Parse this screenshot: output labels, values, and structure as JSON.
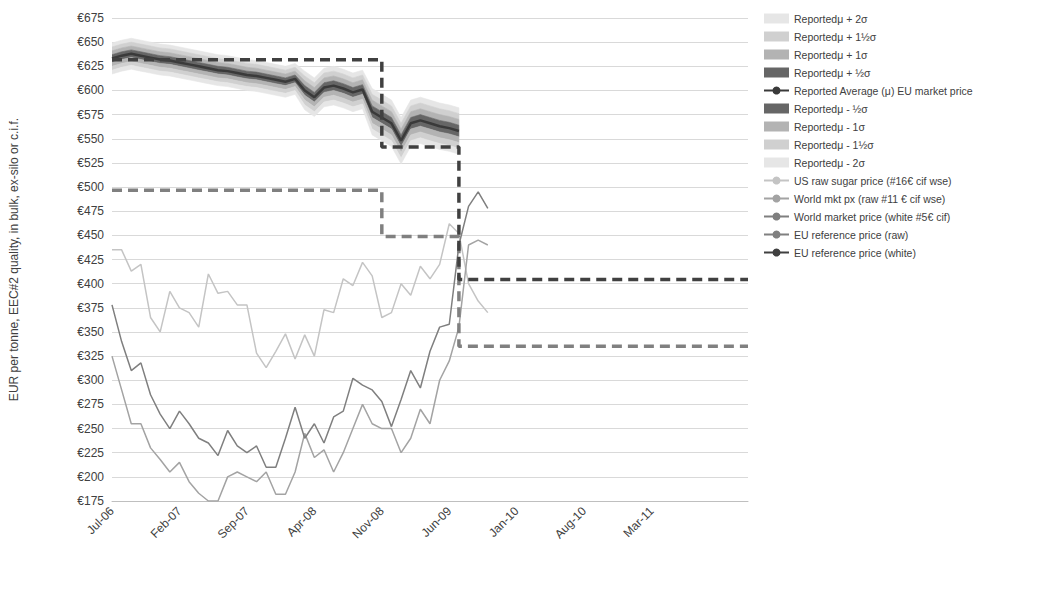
{
  "chart_data": {
    "type": "line",
    "ylabel": "EUR per tonne, EEC#2 quality, in bulk, ex-silo or c.i.f.",
    "categories": [
      "Jul-06",
      null,
      null,
      null,
      null,
      null,
      null,
      "Feb-07",
      null,
      null,
      null,
      null,
      null,
      null,
      "Sep-07",
      null,
      null,
      null,
      null,
      null,
      null,
      "Apr-08",
      null,
      null,
      null,
      null,
      null,
      null,
      "Nov-08",
      null,
      null,
      null,
      null,
      null,
      null,
      "Jun-09",
      null,
      null,
      null,
      null,
      null,
      null,
      "Jan-10",
      null,
      null,
      null,
      null,
      null,
      null,
      "Aug-10",
      null,
      null,
      null,
      null,
      null,
      null,
      "Mar-11",
      null,
      null,
      null,
      null,
      null,
      null,
      null,
      null,
      null,
      null
    ],
    "ylim": [
      175,
      675
    ],
    "yticks": [
      {
        "value": 175,
        "label": "€175"
      },
      {
        "value": 200,
        "label": "€200"
      },
      {
        "value": 225,
        "label": "€225"
      },
      {
        "value": 250,
        "label": "€250"
      },
      {
        "value": 275,
        "label": "€275"
      },
      {
        "value": 300,
        "label": "€300"
      },
      {
        "value": 325,
        "label": "€325"
      },
      {
        "value": 350,
        "label": "€350"
      },
      {
        "value": 375,
        "label": "€375"
      },
      {
        "value": 400,
        "label": "€400"
      },
      {
        "value": 425,
        "label": "€425"
      },
      {
        "value": 450,
        "label": "€450"
      },
      {
        "value": 475,
        "label": "€475"
      },
      {
        "value": 500,
        "label": "€500"
      },
      {
        "value": 525,
        "label": "€525"
      },
      {
        "value": 550,
        "label": "€550"
      },
      {
        "value": 575,
        "label": "€575"
      },
      {
        "value": 600,
        "label": "€600"
      },
      {
        "value": 625,
        "label": "€625"
      },
      {
        "value": 650,
        "label": "€650"
      },
      {
        "value": 675,
        "label": "€675"
      }
    ],
    "grid": true,
    "legend": "right",
    "series": [
      {
        "name": "Reportedμ + 2σ",
        "type": "area",
        "color": "#e6e6e6",
        "values": [
          649,
          652,
          654,
          652,
          650,
          648,
          647,
          645,
          643,
          641,
          639,
          637,
          636,
          634,
          632,
          631,
          629,
          627,
          625,
          628,
          620,
          613,
          623,
          625,
          622,
          618,
          621,
          602,
          596,
          590,
          572,
          590,
          593,
          590,
          587,
          585,
          582,
          null,
          null,
          null,
          null,
          null,
          null,
          null,
          null,
          null,
          null,
          null,
          null,
          null,
          null,
          null,
          null,
          null,
          null,
          null,
          null,
          null,
          null,
          null,
          null,
          null,
          null,
          null,
          null,
          null,
          null
        ]
      },
      {
        "name": "Reportedμ + 1½σ",
        "type": "area",
        "color": "#d0d0d0",
        "values": [
          645,
          648,
          650,
          648,
          646,
          644,
          643,
          641,
          639,
          637,
          635,
          633,
          632,
          630,
          628,
          627,
          625,
          623,
          621,
          624,
          615,
          608,
          618,
          620,
          617,
          613,
          616,
          596,
          590,
          584,
          566,
          584,
          587,
          584,
          581,
          579,
          576,
          null,
          null,
          null,
          null,
          null,
          null,
          null,
          null,
          null,
          null,
          null,
          null,
          null,
          null,
          null,
          null,
          null,
          null,
          null,
          null,
          null,
          null,
          null,
          null,
          null,
          null,
          null,
          null,
          null,
          null
        ]
      },
      {
        "name": "Reportedμ + 1σ",
        "type": "area",
        "color": "#b3b3b3",
        "values": [
          641,
          644,
          646,
          644,
          642,
          640,
          639,
          637,
          635,
          633,
          631,
          629,
          628,
          626,
          624,
          623,
          621,
          619,
          617,
          620,
          610,
          603,
          613,
          615,
          612,
          608,
          611,
          590,
          584,
          578,
          560,
          578,
          581,
          578,
          575,
          573,
          570,
          null,
          null,
          null,
          null,
          null,
          null,
          null,
          null,
          null,
          null,
          null,
          null,
          null,
          null,
          null,
          null,
          null,
          null,
          null,
          null,
          null,
          null,
          null,
          null,
          null,
          null,
          null,
          null,
          null,
          null
        ]
      },
      {
        "name": "Reportedμ + ½σ",
        "type": "area",
        "color": "#666666",
        "values": [
          637,
          640,
          642,
          640,
          638,
          636,
          635,
          633,
          631,
          629,
          627,
          625,
          624,
          622,
          620,
          619,
          617,
          615,
          613,
          616,
          605,
          598,
          608,
          610,
          607,
          603,
          606,
          584,
          578,
          572,
          554,
          572,
          575,
          572,
          569,
          567,
          564,
          null,
          null,
          null,
          null,
          null,
          null,
          null,
          null,
          null,
          null,
          null,
          null,
          null,
          null,
          null,
          null,
          null,
          null,
          null,
          null,
          null,
          null,
          null,
          null,
          null,
          null,
          null,
          null,
          null,
          null
        ]
      },
      {
        "name": "Reported Average (μ) EU market price",
        "color": "#3a3a3a",
        "values": [
          633,
          636,
          638,
          636,
          634,
          632,
          631,
          629,
          627,
          625,
          623,
          621,
          620,
          618,
          616,
          615,
          613,
          611,
          609,
          612,
          600,
          593,
          603,
          605,
          602,
          598,
          601,
          578,
          572,
          566,
          548,
          566,
          569,
          566,
          563,
          561,
          558,
          null,
          null,
          null,
          null,
          null,
          null,
          null,
          null,
          null,
          null,
          null,
          null,
          null,
          null,
          null,
          null,
          null,
          null,
          null,
          null,
          null,
          null,
          null,
          null,
          null,
          null,
          null,
          null,
          null,
          null
        ]
      },
      {
        "name": "Reportedμ - ½σ",
        "type": "area",
        "color": "#666666",
        "values": [
          629,
          632,
          634,
          632,
          630,
          628,
          627,
          625,
          623,
          621,
          619,
          617,
          616,
          614,
          612,
          611,
          609,
          607,
          605,
          608,
          595,
          588,
          598,
          600,
          597,
          593,
          596,
          572,
          566,
          560,
          542,
          560,
          563,
          560,
          557,
          555,
          552,
          null,
          null,
          null,
          null,
          null,
          null,
          null,
          null,
          null,
          null,
          null,
          null,
          null,
          null,
          null,
          null,
          null,
          null,
          null,
          null,
          null,
          null,
          null,
          null,
          null,
          null,
          null,
          null,
          null,
          null
        ]
      },
      {
        "name": "Reportedμ - 1σ",
        "type": "area",
        "color": "#b3b3b3",
        "values": [
          625,
          628,
          630,
          628,
          626,
          624,
          623,
          621,
          619,
          617,
          615,
          613,
          612,
          610,
          608,
          607,
          605,
          603,
          601,
          604,
          590,
          583,
          593,
          595,
          592,
          588,
          591,
          566,
          560,
          554,
          536,
          554,
          557,
          554,
          551,
          549,
          546,
          null,
          null,
          null,
          null,
          null,
          null,
          null,
          null,
          null,
          null,
          null,
          null,
          null,
          null,
          null,
          null,
          null,
          null,
          null,
          null,
          null,
          null,
          null,
          null,
          null,
          null,
          null,
          null,
          null,
          null
        ]
      },
      {
        "name": "Reportedμ - 1½σ",
        "type": "area",
        "color": "#d0d0d0",
        "values": [
          621,
          624,
          626,
          624,
          622,
          620,
          619,
          617,
          615,
          613,
          611,
          609,
          608,
          606,
          604,
          603,
          601,
          599,
          597,
          600,
          585,
          578,
          588,
          590,
          587,
          583,
          586,
          560,
          554,
          548,
          530,
          548,
          551,
          548,
          545,
          543,
          540,
          null,
          null,
          null,
          null,
          null,
          null,
          null,
          null,
          null,
          null,
          null,
          null,
          null,
          null,
          null,
          null,
          null,
          null,
          null,
          null,
          null,
          null,
          null,
          null,
          null,
          null,
          null,
          null,
          null,
          null
        ]
      },
      {
        "name": "Reportedμ - 2σ",
        "type": "area",
        "color": "#e6e6e6",
        "values": [
          617,
          620,
          622,
          620,
          618,
          616,
          615,
          613,
          611,
          609,
          607,
          605,
          604,
          602,
          600,
          599,
          597,
          595,
          593,
          596,
          580,
          573,
          583,
          585,
          582,
          578,
          581,
          554,
          548,
          542,
          524,
          542,
          545,
          542,
          539,
          537,
          534,
          null,
          null,
          null,
          null,
          null,
          null,
          null,
          null,
          null,
          null,
          null,
          null,
          null,
          null,
          null,
          null,
          null,
          null,
          null,
          null,
          null,
          null,
          null,
          null,
          null,
          null,
          null,
          null,
          null,
          null
        ]
      },
      {
        "name": "US raw sugar price (#16€ cif wse)",
        "color": "#c4c4c4",
        "values": [
          435,
          435,
          413,
          420,
          365,
          350,
          392,
          375,
          370,
          355,
          410,
          390,
          392,
          378,
          378,
          328,
          313,
          330,
          348,
          322,
          347,
          325,
          373,
          370,
          405,
          398,
          422,
          408,
          365,
          370,
          400,
          388,
          418,
          405,
          420,
          462,
          452,
          400,
          382,
          370,
          null,
          null,
          null,
          null,
          null,
          null,
          null,
          null,
          null,
          null,
          null,
          null,
          null,
          null,
          null,
          null,
          null,
          null,
          null,
          null,
          null,
          null,
          null,
          null,
          null,
          null,
          null
        ]
      },
      {
        "name": "World mkt px (raw #11 € cif wse)",
        "color": "#a3a3a3",
        "values": [
          325,
          290,
          255,
          255,
          230,
          218,
          205,
          215,
          195,
          183,
          175,
          175,
          200,
          205,
          200,
          195,
          205,
          182,
          182,
          205,
          245,
          220,
          228,
          205,
          225,
          250,
          275,
          255,
          250,
          250,
          225,
          240,
          270,
          255,
          300,
          320,
          355,
          440,
          445,
          440,
          null,
          null,
          null,
          null,
          null,
          null,
          null,
          null,
          null,
          null,
          null,
          null,
          null,
          null,
          null,
          null,
          null,
          null,
          null,
          null,
          null,
          null,
          null,
          null,
          null,
          null,
          null
        ]
      },
      {
        "name": "World market price (white #5€ cif)",
        "color": "#7f7f7f",
        "values": [
          378,
          340,
          310,
          318,
          285,
          265,
          250,
          268,
          255,
          240,
          235,
          222,
          248,
          232,
          225,
          232,
          210,
          210,
          240,
          272,
          240,
          255,
          235,
          262,
          268,
          302,
          295,
          290,
          278,
          252,
          280,
          310,
          292,
          330,
          355,
          358,
          440,
          480,
          495,
          478,
          null,
          null,
          null,
          null,
          null,
          null,
          null,
          null,
          null,
          null,
          null,
          null,
          null,
          null,
          null,
          null,
          null,
          null,
          null,
          null,
          null,
          null,
          null,
          null,
          null,
          null,
          null
        ]
      },
      {
        "name": "EU reference price (raw)",
        "color": "#808080",
        "line_style": "dashed",
        "values": [
          496.8,
          496.8,
          496.8,
          496.8,
          496.8,
          496.8,
          496.8,
          496.8,
          496.8,
          496.8,
          496.8,
          496.8,
          496.8,
          496.8,
          496.8,
          496.8,
          496.8,
          496.8,
          496.8,
          496.8,
          496.8,
          496.8,
          496.8,
          496.8,
          496.8,
          496.8,
          496.8,
          496.8,
          448.8,
          448.8,
          448.8,
          448.8,
          448.8,
          448.8,
          448.8,
          448.8,
          335.2,
          335.2,
          335.2,
          335.2,
          335.2,
          335.2,
          335.2,
          335.2,
          335.2,
          335.2,
          335.2,
          335.2,
          335.2,
          335.2,
          335.2,
          335.2,
          335.2,
          335.2,
          335.2,
          335.2,
          335.2,
          335.2,
          335.2,
          335.2,
          335.2,
          335.2,
          335.2,
          335.2,
          335.2,
          335.2,
          335.2
        ]
      },
      {
        "name": "EU reference price (white)",
        "color": "#404040",
        "line_style": "dashed",
        "values": [
          631.9,
          631.9,
          631.9,
          631.9,
          631.9,
          631.9,
          631.9,
          631.9,
          631.9,
          631.9,
          631.9,
          631.9,
          631.9,
          631.9,
          631.9,
          631.9,
          631.9,
          631.9,
          631.9,
          631.9,
          631.9,
          631.9,
          631.9,
          631.9,
          631.9,
          631.9,
          631.9,
          631.9,
          541.5,
          541.5,
          541.5,
          541.5,
          541.5,
          541.5,
          541.5,
          541.5,
          404.4,
          404.4,
          404.4,
          404.4,
          404.4,
          404.4,
          404.4,
          404.4,
          404.4,
          404.4,
          404.4,
          404.4,
          404.4,
          404.4,
          404.4,
          404.4,
          404.4,
          404.4,
          404.4,
          404.4,
          404.4,
          404.4,
          404.4,
          404.4,
          404.4,
          404.4,
          404.4,
          404.4,
          404.4,
          404.4,
          404.4
        ]
      }
    ]
  }
}
